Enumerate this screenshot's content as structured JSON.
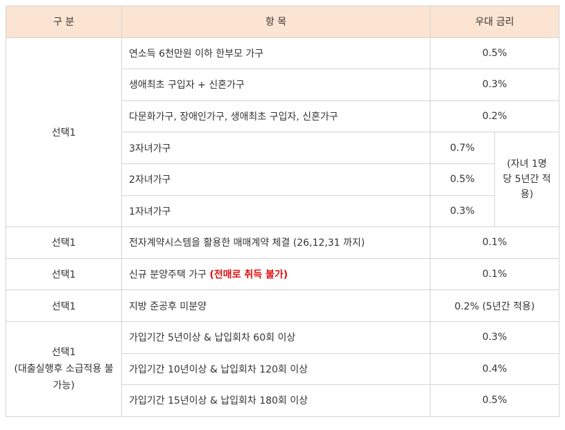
{
  "table": {
    "headers": [
      "구 분",
      "항 목",
      "우대 금리"
    ],
    "rows": [
      {
        "group": "선택1",
        "item": "연소득 6천만원 이하 한부모 가구",
        "rate": "0.5%"
      },
      {
        "item": "생애최초 구입자 + 신혼가구",
        "rate": "0.3%"
      },
      {
        "item": "다문화가구, 장애인가구, 생애최초 구입자, 신혼가구",
        "rate": "0.2%"
      },
      {
        "item": "3자녀가구",
        "rate": "0.7%",
        "note": "(자녀 1명 당 5년간 적용)"
      },
      {
        "item": "2자녀가구",
        "rate": "0.5%"
      },
      {
        "item": "1자녀가구",
        "rate": "0.3%"
      },
      {
        "group": "선택1",
        "item": "전자계약시스템을 활용한 매매계약 체결 (26,12,31 까지)",
        "rate": "0.1%"
      },
      {
        "group": "선택1",
        "item": "신규 분양주택 가구",
        "warning": "(전매로 취득 불가)",
        "rate": "0.1%"
      },
      {
        "group": "선택1",
        "item": "지방 준공후 미분양",
        "rate": "0.2% (5년간 적용)"
      },
      {
        "group": "선택1",
        "group_note": "(대출실행후 소급적용 불가능)",
        "item": "가입기간 5년이상 & 납입회차 60회 이상",
        "rate": "0.3%"
      },
      {
        "item": "가입기간 10년이상 & 납입회차 120회 이상",
        "rate": "0.4%"
      },
      {
        "item": "가입기간 15년이상 & 납입회차 180회 이상",
        "rate": "0.5%"
      }
    ]
  }
}
